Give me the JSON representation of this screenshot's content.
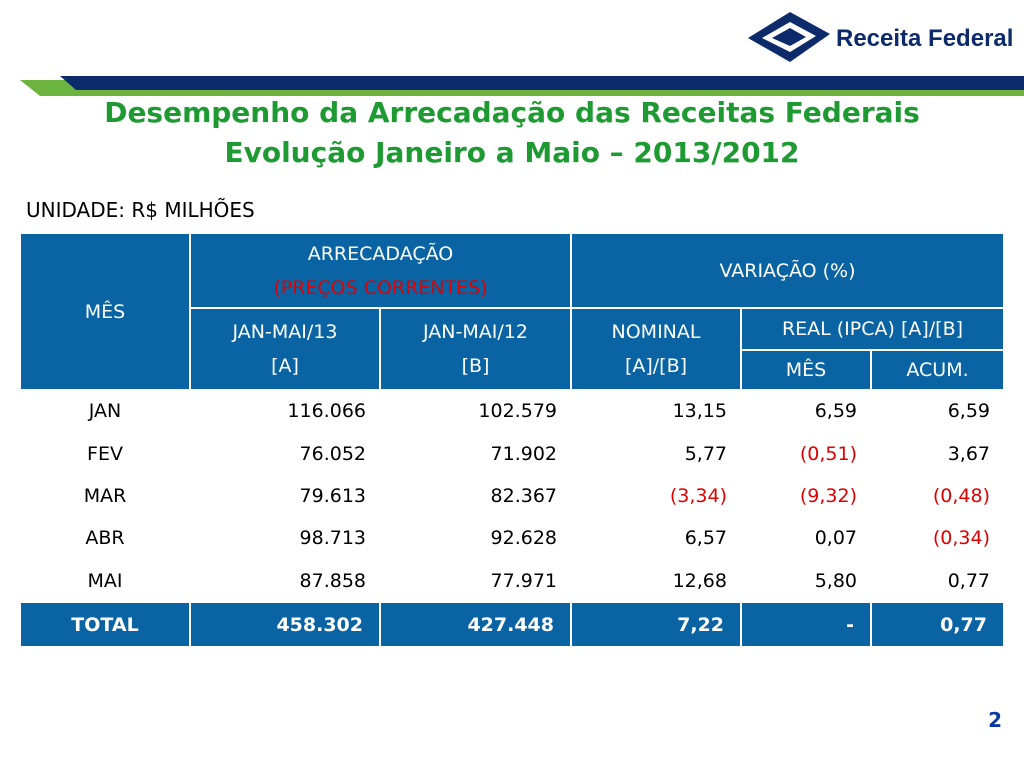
{
  "header": {
    "brand": "Receita Federal",
    "title": [
      "Desempenho da Arrecadação das Receitas Federais",
      "Evolução Janeiro a Maio – 2013/2012"
    ]
  },
  "unit": "UNIDADE: R$ MILHÕES",
  "table": {
    "head": {
      "month": "MÊS",
      "collection": [
        "ARRECADAÇÃO",
        "(PREÇOS CORRENTES)"
      ],
      "variation": "VARIAÇÃO (%)",
      "jan_mai_13": [
        "JAN-MAI/13",
        "[A]"
      ],
      "jan_mai_12": [
        "JAN-MAI/12",
        "[B]"
      ],
      "nominal": [
        "NOMINAL",
        "[A]/[B]"
      ],
      "real": "REAL (IPCA) [A]/[B]",
      "real_month": "MÊS",
      "real_acum": "ACUM."
    },
    "rows": [
      [
        "JAN",
        "116.066",
        "102.579",
        "13,15",
        "6,59",
        "6,59"
      ],
      [
        "FEV",
        "76.052",
        "71.902",
        "5,77",
        "(0,51)",
        "3,67"
      ],
      [
        "MAR",
        "79.613",
        "82.367",
        "(3,34)",
        "(9,32)",
        "(0,48)"
      ],
      [
        "ABR",
        "98.713",
        "92.628",
        "6,57",
        "0,07",
        "(0,34)"
      ],
      [
        "MAI",
        "87.858",
        "77.971",
        "12,68",
        "5,80",
        "0,77"
      ]
    ],
    "total": [
      "TOTAL",
      "458.302",
      "427.448",
      "7,22",
      "-",
      "0,77"
    ]
  },
  "page_number": "2"
}
